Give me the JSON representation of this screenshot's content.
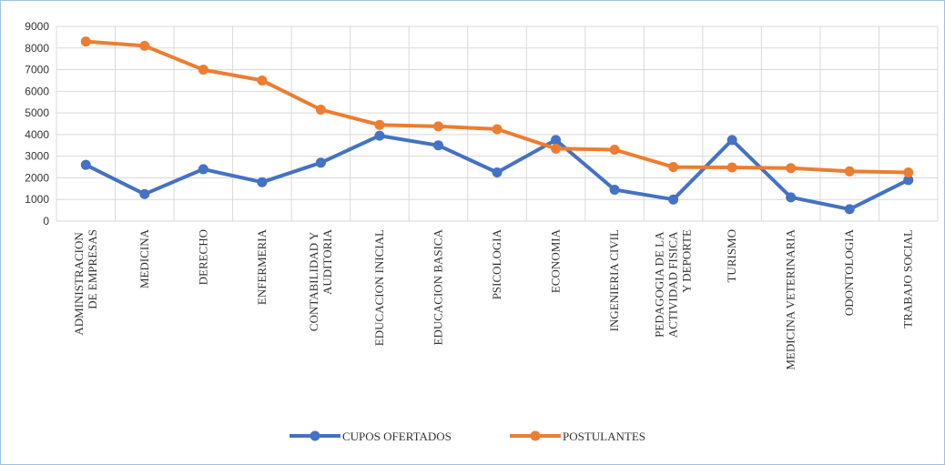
{
  "chart_data": {
    "type": "line",
    "categories": [
      "ADMINISTRACION DE EMPRESAS",
      "MEDICINA",
      "DERECHO",
      "ENFERMERIA",
      "CONTABILIDAD Y AUDITORIA",
      "EDUCACION INICIAL",
      "EDUCACION BASICA",
      "PSICOLOGIA",
      "ECONOMIA",
      "INGENIERIA CIVIL",
      "PEDAGOGIA DE LA ACTIVIDAD FISICA Y DEPORTE",
      "TURISMO",
      "MEDICINA VETERINARIA",
      "ODONTOLOGIA",
      "TRABAJO SOCIAL"
    ],
    "series": [
      {
        "name": "CUPOS OFERTADOS",
        "color": "#4472c4",
        "values": [
          2600,
          1250,
          2400,
          1800,
          2700,
          3950,
          3500,
          2250,
          3750,
          1450,
          1000,
          3750,
          1100,
          550,
          1900
        ]
      },
      {
        "name": "POSTULANTES",
        "color": "#ed7d31",
        "values": [
          8300,
          8100,
          7000,
          6500,
          5150,
          4450,
          4380,
          4250,
          3350,
          3300,
          2500,
          2480,
          2450,
          2300,
          2250
        ]
      }
    ],
    "ylim": [
      0,
      9000
    ],
    "yticks": [
      0,
      1000,
      2000,
      3000,
      4000,
      5000,
      6000,
      7000,
      8000,
      9000
    ],
    "grid": true,
    "legend": "bottom"
  }
}
